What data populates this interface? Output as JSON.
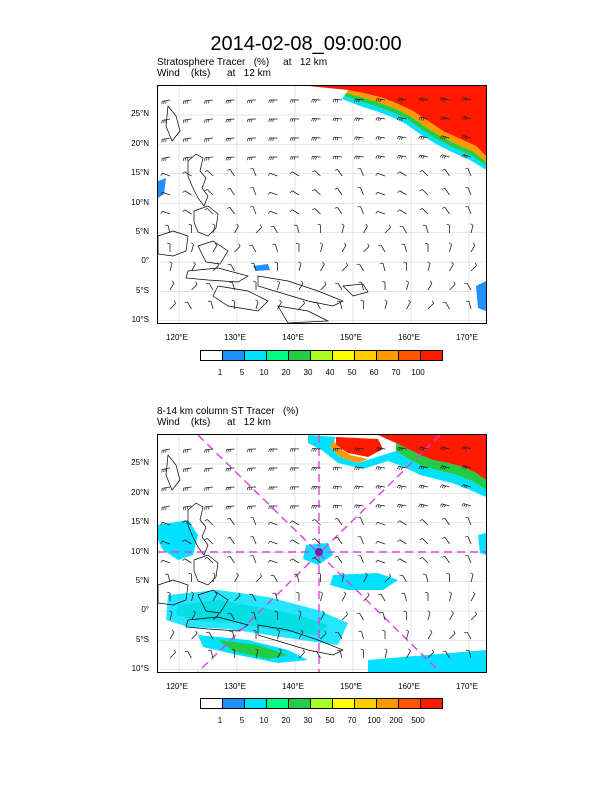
{
  "title": "2014-02-08_09:00:00",
  "panels": [
    {
      "id": "top",
      "subtitle_line1": "Stratosphere Tracer   (%)     at   12 km",
      "subtitle_line2": "Wind    (kts)      at   12 km",
      "lat_labels": [
        "25°N",
        "20°N",
        "15°N",
        "10°N",
        "5°N",
        "0°",
        "5°S",
        "10°S"
      ],
      "lon_labels": [
        "120°E",
        "130°E",
        "140°E",
        "150°E",
        "160°E",
        "170°E"
      ],
      "colorbar_labels": [
        "1",
        "5",
        "10",
        "20",
        "30",
        "40",
        "50",
        "60",
        "70",
        "100"
      ],
      "colorbar_colors": [
        "#ffffff",
        "#1e90ff",
        "#00e0ff",
        "#00ff80",
        "#22cc44",
        "#aaff22",
        "#ffff00",
        "#ffcc00",
        "#ff9900",
        "#ff5500",
        "#ff1a00"
      ]
    },
    {
      "id": "bottom",
      "subtitle_line1": "8-14 km column ST Tracer   (%)",
      "subtitle_line2": "Wind    (kts)      at   12 km",
      "lat_labels": [
        "25°N",
        "20°N",
        "15°N",
        "10°N",
        "5°N",
        "0°",
        "5°S",
        "10°S"
      ],
      "lon_labels": [
        "120°E",
        "130°E",
        "140°E",
        "150°E",
        "160°E",
        "170°E"
      ],
      "colorbar_labels": [
        "1",
        "5",
        "10",
        "20",
        "30",
        "50",
        "70",
        "100",
        "200",
        "500"
      ],
      "colorbar_colors": [
        "#ffffff",
        "#1e90ff",
        "#00e0ff",
        "#00ff80",
        "#22cc44",
        "#aaff22",
        "#ffff00",
        "#ffcc00",
        "#ff9900",
        "#ff5500",
        "#ff1a00"
      ]
    }
  ]
}
